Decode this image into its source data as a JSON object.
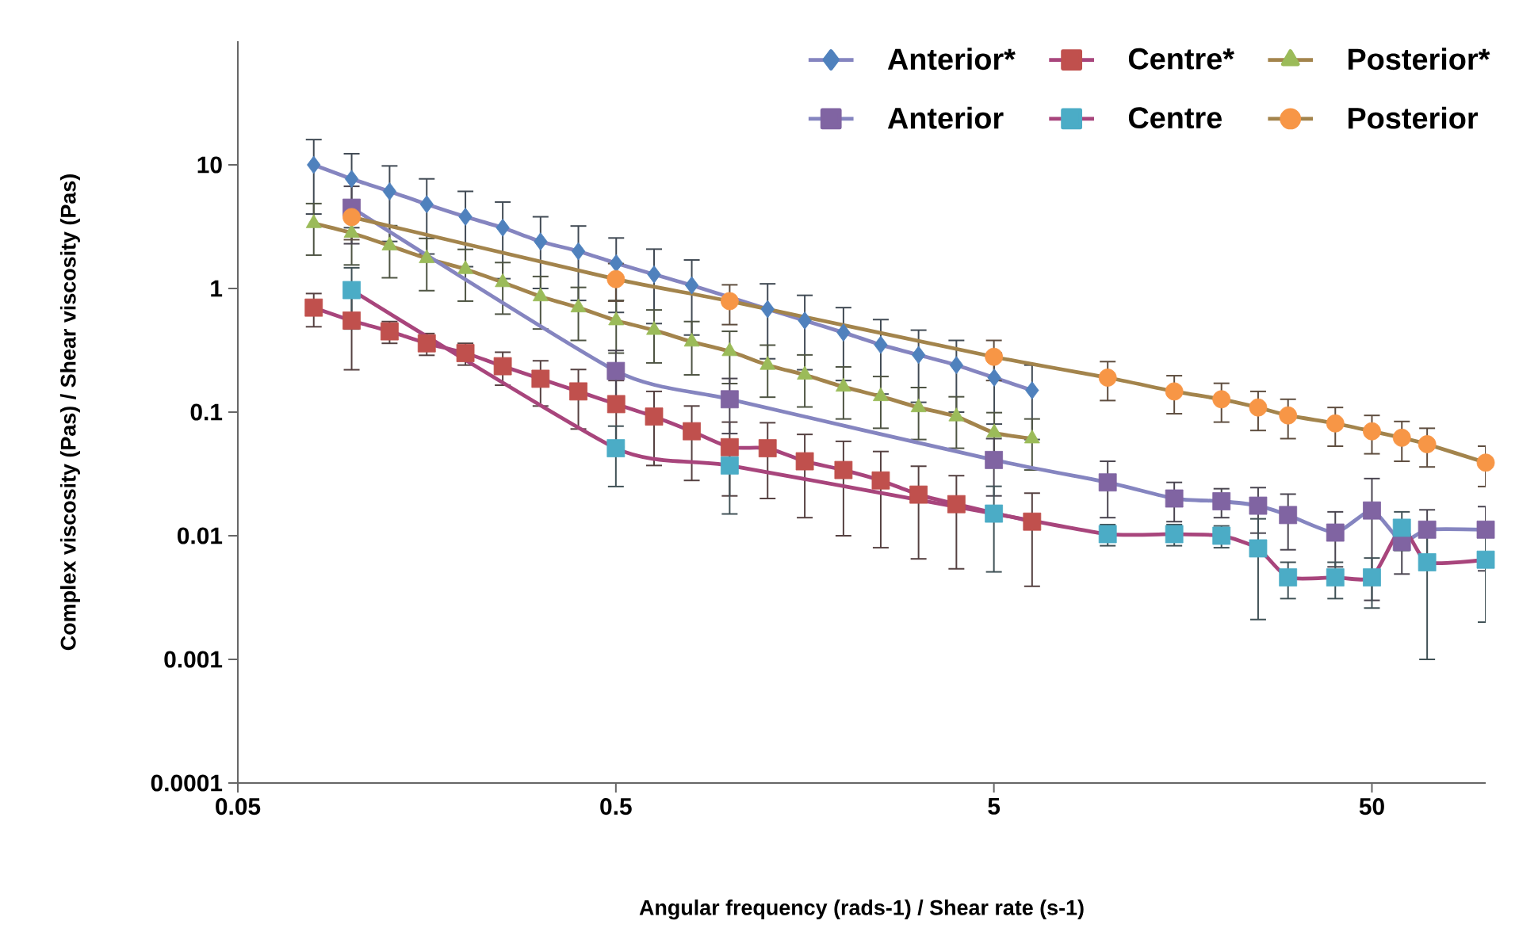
{
  "chart_data": {
    "type": "line",
    "xlabel": "Angular frequency (rads-1) / Shear rate (s-1)",
    "ylabel": "Complex viscosity (Pas) / Shear viscosity (Pas)",
    "log": "xy",
    "xlim": [
      0.05,
      100
    ],
    "ylim": [
      0.0001,
      100
    ],
    "xticks": [
      0.05,
      0.5,
      5,
      50
    ],
    "yticks": [
      0.0001,
      0.001,
      0.01,
      0.1,
      1,
      10
    ],
    "legend": "top right",
    "series": [
      {
        "name": "Anterior*",
        "color": "#8585c0",
        "marker": "diamond",
        "x": [
          0.0794,
          0.1,
          0.126,
          0.158,
          0.2,
          0.251,
          0.316,
          0.398,
          0.501,
          0.631,
          0.794,
          1.0,
          1.26,
          1.58,
          2.0,
          2.51,
          3.16,
          3.98,
          5.01,
          6.31
        ],
        "values": [
          10,
          7.7,
          6.1,
          4.8,
          3.8,
          3.1,
          2.4,
          2.0,
          1.6,
          1.3,
          1.06,
          null,
          0.68,
          0.55,
          0.44,
          0.35,
          0.29,
          0.24,
          0.19,
          0.15
        ],
        "errors": [
          6,
          4.6,
          3.7,
          2.9,
          2.3,
          1.9,
          1.4,
          1.2,
          0.96,
          0.78,
          0.64,
          null,
          0.41,
          0.33,
          0.26,
          0.21,
          0.17,
          0.14,
          0.11,
          0.09
        ],
        "colors": [
          "#4f81bd",
          "#4f81bd",
          "#4f81bd",
          "#4f81bd",
          "#4f81bd",
          "#4f81bd",
          "#4f81bd",
          "#4f81bd",
          "#4f81bd",
          "#4f81bd",
          "#4f81bd",
          "#4f81bd",
          "#4f81bd",
          "#4f81bd",
          "#4f81bd",
          "#4f81bd",
          "#4f81bd",
          "#4f81bd",
          "#4f81bd",
          "#4f81bd"
        ]
      },
      {
        "name": "Centre*",
        "color": "#a8457c",
        "marker": "square",
        "x": [
          0.0794,
          0.1,
          0.126,
          0.158,
          0.2,
          0.251,
          0.316,
          0.398,
          0.501,
          0.631,
          0.794,
          1.0,
          1.26,
          1.58,
          2.0,
          2.51,
          3.16,
          3.98,
          5.01,
          6.31
        ],
        "values": [
          0.7,
          0.55,
          0.45,
          0.36,
          0.3,
          0.235,
          0.186,
          0.147,
          0.116,
          0.092,
          0.07,
          0.052,
          0.051,
          0.04,
          0.034,
          0.028,
          0.0215,
          0.018,
          null,
          0.013
        ],
        "errors": [
          0.21,
          0.33,
          0.09,
          0.072,
          0.06,
          0.07,
          0.074,
          0.074,
          0.064,
          0.055,
          0.042,
          0.031,
          0.031,
          0.026,
          0.024,
          0.02,
          0.015,
          0.0126,
          null,
          0.0091
        ],
        "colors": [
          "#c0504d",
          "#c0504d",
          "#c0504d",
          "#c0504d",
          "#c0504d",
          "#c0504d",
          "#c0504d",
          "#c0504d",
          "#c0504d",
          "#c0504d",
          "#c0504d",
          "#c0504d",
          "#c0504d",
          "#c0504d",
          "#c0504d",
          "#c0504d",
          "#c0504d",
          "#c0504d",
          "#c0504d",
          "#c0504d"
        ]
      },
      {
        "name": "Posterior*",
        "color": "#a3844c",
        "marker": "triangle",
        "x": [
          0.0794,
          0.1,
          0.126,
          0.158,
          0.2,
          0.251,
          0.316,
          0.398,
          0.501,
          0.631,
          0.794,
          1.0,
          1.26,
          1.58,
          2.0,
          2.51,
          3.16,
          3.98,
          5.01,
          6.31
        ],
        "values": [
          3.36,
          2.81,
          2.22,
          1.75,
          1.43,
          1.12,
          0.86,
          0.7,
          0.55,
          0.46,
          0.37,
          0.31,
          0.24,
          0.2,
          0.16,
          0.134,
          0.109,
          0.092,
          0.068,
          0.061
        ],
        "errors": [
          1.5,
          1.26,
          1.0,
          0.79,
          0.64,
          0.5,
          0.39,
          0.32,
          0.25,
          0.21,
          0.17,
          0.14,
          0.108,
          0.09,
          0.072,
          0.06,
          0.049,
          0.041,
          0.031,
          0.027
        ],
        "colors": [
          "#9bbb59",
          "#9bbb59",
          "#9bbb59",
          "#9bbb59",
          "#9bbb59",
          "#9bbb59",
          "#9bbb59",
          "#9bbb59",
          "#9bbb59",
          "#9bbb59",
          "#9bbb59",
          "#9bbb59",
          "#9bbb59",
          "#9bbb59",
          "#9bbb59",
          "#9bbb59",
          "#9bbb59",
          "#9bbb59",
          "#9bbb59",
          "#9bbb59"
        ]
      },
      {
        "name": "Anterior",
        "color": "#8585c0",
        "marker": "square",
        "x": [
          0.1,
          0.5,
          1,
          5,
          10,
          15,
          20,
          25,
          30,
          40,
          50,
          60,
          70,
          100
        ],
        "values": [
          4.5,
          0.215,
          0.127,
          0.041,
          0.027,
          0.02,
          0.019,
          0.0175,
          0.0147,
          0.0106,
          0.016,
          0.0089,
          0.0112,
          0.0112
        ],
        "errors": [
          2.2,
          0.1,
          0.06,
          0.02,
          0.013,
          0.007,
          0.005,
          0.007,
          0.007,
          0.005,
          0.013,
          0.004,
          0.005,
          0.006
        ],
        "colors": [
          "#8064a2",
          "#8064a2",
          "#8064a2",
          "#8064a2",
          "#8064a2",
          "#8064a2",
          "#8064a2",
          "#8064a2",
          "#8064a2",
          "#8064a2",
          "#8064a2",
          "#8064a2",
          "#8064a2",
          "#8064a2"
        ]
      },
      {
        "name": "Centre",
        "color": "#a8457c",
        "marker": "square",
        "x": [
          0.1,
          0.5,
          1,
          5,
          10,
          15,
          20,
          25,
          30,
          40,
          50,
          60,
          70,
          100
        ],
        "values": [
          0.97,
          0.051,
          0.037,
          0.0151,
          0.0103,
          0.0103,
          0.01,
          0.0079,
          0.0046,
          0.0046,
          0.0046,
          0.0116,
          0.0061,
          0.0064
        ],
        "errors": [
          0.5,
          0.026,
          0.022,
          0.01,
          0.002,
          0.002,
          0.002,
          0.0058,
          0.0015,
          0.0015,
          0.002,
          0.004,
          0.0051,
          0.0044
        ],
        "colors": [
          "#4bacc6",
          "#4bacc6",
          "#4bacc6",
          "#4bacc6",
          "#4bacc6",
          "#4bacc6",
          "#4bacc6",
          "#4bacc6",
          "#4bacc6",
          "#4bacc6",
          "#4bacc6",
          "#4bacc6",
          "#4bacc6",
          "#4bacc6"
        ]
      },
      {
        "name": "Posterior",
        "color": "#a3844c",
        "marker": "circle",
        "x": [
          0.1,
          0.5,
          1,
          5,
          10,
          15,
          20,
          25,
          30,
          40,
          50,
          60,
          70,
          100
        ],
        "values": [
          3.78,
          1.19,
          0.79,
          0.28,
          0.19,
          0.147,
          0.127,
          0.109,
          0.094,
          0.081,
          0.07,
          0.062,
          0.055,
          0.039
        ],
        "errors": [
          1.3,
          0.4,
          0.28,
          0.1,
          0.066,
          0.05,
          0.044,
          0.038,
          0.033,
          0.028,
          0.024,
          0.022,
          0.019,
          0.014
        ],
        "colors": [
          "#f79646",
          "#f79646",
          "#f79646",
          "#f79646",
          "#f79646",
          "#f79646",
          "#f79646",
          "#f79646",
          "#f79646",
          "#f79646",
          "#f79646",
          "#f79646",
          "#f79646",
          "#f79646"
        ]
      }
    ]
  }
}
